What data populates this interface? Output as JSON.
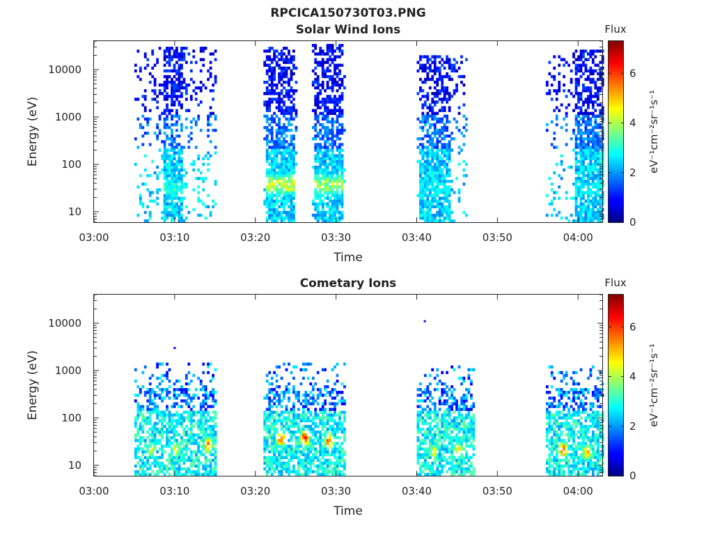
{
  "figure_title": "RPCICA150730T03.PNG",
  "chart_data": [
    {
      "type": "heatmap",
      "title": "Solar Wind Ions",
      "xlabel": "Time",
      "ylabel": "Energy (eV)",
      "yscale": "log",
      "ylim": [
        6,
        40000
      ],
      "xlim": [
        "03:00",
        "04:03"
      ],
      "x_ticks": [
        "03:00",
        "03:10",
        "03:20",
        "03:30",
        "03:40",
        "03:50",
        "04:00"
      ],
      "y_ticks": [
        "10",
        "100",
        "1000",
        "10000"
      ],
      "colorbar": {
        "title": "Flux",
        "label": "eV⁻¹cm⁻²sr⁻¹s⁻¹",
        "range": [
          0,
          7.3
        ],
        "ticks": [
          "0",
          "2",
          "4",
          "6"
        ]
      },
      "bursts": [
        {
          "start": "03:05",
          "end": "03:15",
          "emax": 30000,
          "core": [
            8.3,
            10.9
          ],
          "peak_energy": 30,
          "peak_flux": 3.5
        },
        {
          "start": "03:21",
          "end": "03:25",
          "emax": 30000,
          "core": [
            21.3,
            24.9
          ],
          "peak_energy": 35,
          "peak_flux": 4.8
        },
        {
          "start": "03:27",
          "end": "03:31",
          "emax": 35000,
          "core": [
            27.3,
            30.9
          ],
          "peak_energy": 35,
          "peak_flux": 4.5
        },
        {
          "start": "03:40",
          "end": "03:46",
          "emax": 20000,
          "core": [
            40.3,
            43.9
          ],
          "peak_energy": 30,
          "peak_flux": 3.0
        },
        {
          "start": "03:56",
          "end": "04:03",
          "emax": 25000,
          "core": [
            59.3,
            62.9
          ],
          "peak_energy": 30,
          "peak_flux": 3.0
        }
      ]
    },
    {
      "type": "heatmap",
      "title": "Cometary Ions",
      "xlabel": "Time",
      "ylabel": "Energy (eV)",
      "yscale": "log",
      "ylim": [
        6,
        40000
      ],
      "xlim": [
        "03:00",
        "04:03"
      ],
      "x_ticks": [
        "03:00",
        "03:10",
        "03:20",
        "03:30",
        "03:40",
        "03:50",
        "04:00"
      ],
      "y_ticks": [
        "10",
        "100",
        "1000",
        "10000"
      ],
      "colorbar": {
        "title": "Flux",
        "label": "eV⁻¹cm⁻²sr⁻¹s⁻¹",
        "range": [
          0,
          7.3
        ],
        "ticks": [
          "0",
          "2",
          "4",
          "6"
        ]
      },
      "bursts": [
        {
          "start": "03:05",
          "end": "03:15",
          "emax": 1500,
          "peaks": [
            {
              "time": "03:07",
              "energy": 20,
              "flux": 5.0
            },
            {
              "time": "03:10",
              "energy": 20,
              "flux": 5.0
            },
            {
              "time": "03:14",
              "energy": 25,
              "flux": 6.5
            }
          ]
        },
        {
          "start": "03:21",
          "end": "03:31",
          "emax": 1500,
          "peaks": [
            {
              "time": "03:23",
              "energy": 35,
              "flux": 6.5
            },
            {
              "time": "03:26",
              "energy": 35,
              "flux": 7.0
            },
            {
              "time": "03:29",
              "energy": 30,
              "flux": 6.5
            }
          ]
        },
        {
          "start": "03:40",
          "end": "03:47",
          "emax": 1500,
          "peaks": [
            {
              "time": "03:42",
              "energy": 18,
              "flux": 5.0
            },
            {
              "time": "03:45",
              "energy": 20,
              "flux": 5.5
            }
          ]
        },
        {
          "start": "03:56",
          "end": "04:03",
          "emax": 1200,
          "peaks": [
            {
              "time": "03:58",
              "energy": 20,
              "flux": 6.5
            },
            {
              "time": "04:01",
              "energy": 18,
              "flux": 6.0
            }
          ]
        }
      ],
      "isolated_points": [
        {
          "time": "03:10",
          "energy": 3000
        },
        {
          "time": "03:41",
          "energy": 11000
        }
      ]
    }
  ]
}
